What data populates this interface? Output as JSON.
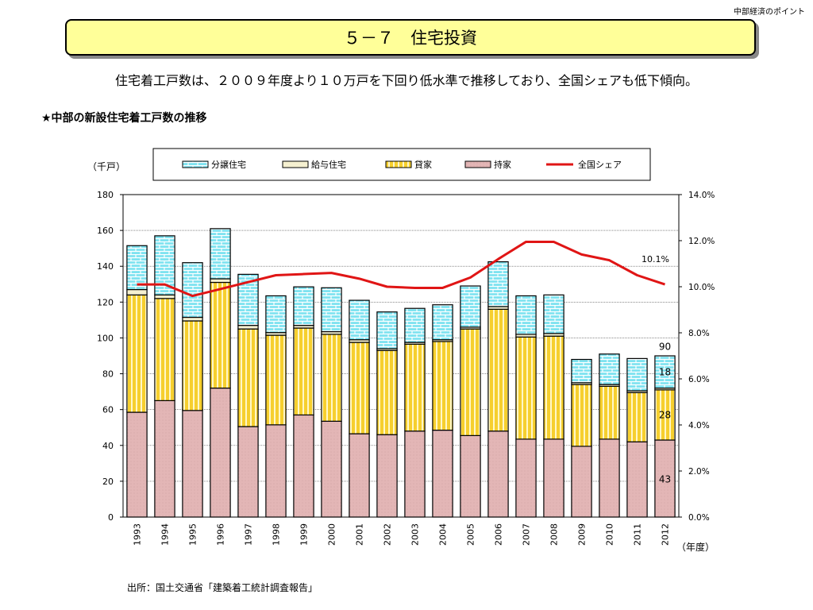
{
  "header": {
    "corner_label": "中部経済のポイント",
    "title": "５－７　住宅投資"
  },
  "summary": "住宅着工戸数は、２００９年度より１０万戸を下回り低水準で推移しており、全国シェアも低下傾向。",
  "section_title": "★中部の新設住宅着工戸数の推移",
  "source": "出所：国土交通省「建築着工統計調査報告」",
  "colors": {
    "bunjo": "#7fe3f0",
    "kyuyo": "#f5f0d0",
    "kashiya": "#f6cf2e",
    "mochiie": "#e3b6b6",
    "share": "#e01515"
  },
  "chart_data": {
    "type": "bar",
    "stacked": true,
    "y_unit_label": "（千戸）",
    "x_unit_label": "（年度）",
    "ylim": [
      0,
      180
    ],
    "y_ticks": [
      0,
      20,
      40,
      60,
      80,
      100,
      120,
      140,
      160,
      180
    ],
    "y2lim": [
      0,
      14
    ],
    "y2_ticks": [
      "0.0%",
      "2.0%",
      "4.0%",
      "6.0%",
      "8.0%",
      "10.0%",
      "12.0%",
      "14.0%"
    ],
    "categories": [
      "1993",
      "1994",
      "1995",
      "1996",
      "1997",
      "1998",
      "1999",
      "2000",
      "2001",
      "2002",
      "2003",
      "2004",
      "2005",
      "2006",
      "2007",
      "2008",
      "2009",
      "2010",
      "2011",
      "2012"
    ],
    "series": [
      {
        "name": "持家",
        "values": [
          58.5,
          65,
          59.5,
          72,
          50.5,
          51.5,
          57,
          53.5,
          46.5,
          46,
          48,
          48.5,
          45.5,
          48,
          43.5,
          43.5,
          39.5,
          43.5,
          42,
          43
        ]
      },
      {
        "name": "貸家",
        "values": [
          65.5,
          57,
          50,
          59,
          54.5,
          50,
          48.5,
          48.5,
          51,
          47,
          48.5,
          49.5,
          59.5,
          68,
          57,
          57.5,
          34.5,
          29.5,
          27.5,
          28
        ]
      },
      {
        "name": "給与住宅",
        "values": [
          3,
          2,
          2,
          2,
          2,
          1.5,
          1.5,
          1.5,
          1.5,
          1,
          1,
          1,
          1,
          1.5,
          1.5,
          1.5,
          1,
          1,
          1,
          1
        ]
      },
      {
        "name": "分譲住宅",
        "values": [
          24.5,
          33,
          30.5,
          28,
          28.5,
          20.5,
          21.5,
          24.5,
          22,
          20.5,
          19,
          19.5,
          23,
          25,
          21.5,
          21.5,
          13,
          17,
          18,
          18
        ]
      }
    ],
    "line": {
      "name": "全国シェア",
      "axis": "right",
      "values": [
        10.1,
        10.1,
        9.6,
        9.9,
        10.2,
        10.5,
        10.55,
        10.6,
        10.35,
        10.0,
        9.95,
        9.95,
        10.4,
        11.2,
        11.95,
        11.95,
        11.4,
        11.15,
        10.5,
        10.1
      ]
    },
    "annotations": {
      "share_label": "10.1%",
      "total": "90",
      "bunjo": "18",
      "kashiya": "28",
      "mochiie": "43"
    }
  }
}
